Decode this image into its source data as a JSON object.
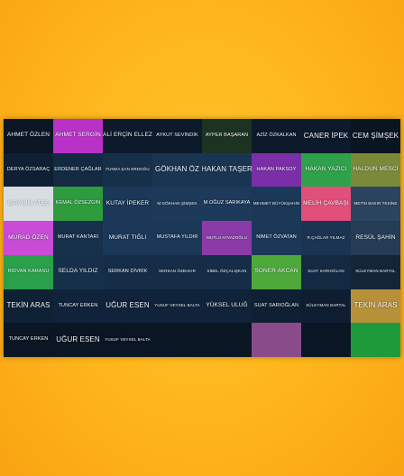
{
  "grid": {
    "columns": 8,
    "rows": [
      [
        {
          "text": "AHMET ÖZLEN",
          "bg": "#0b1726",
          "size": "m"
        },
        {
          "text": "AHMET SERGİN",
          "bg": "#b832c7",
          "size": "m"
        },
        {
          "text": "ALİ ERÇİN ELLEZ",
          "bg": "#0d1a2b",
          "size": "m"
        },
        {
          "text": "AYKUT SEVİNDİK",
          "bg": "#0d1a2b",
          "size": "s"
        },
        {
          "text": "AYPER BAŞARAN",
          "bg": "#1d3322",
          "size": "s"
        },
        {
          "text": "AZİZ ÖZKALKAN",
          "bg": "#0d1a2b",
          "size": "s"
        },
        {
          "text": "CANER İPEK",
          "bg": "#0d1a2b",
          "size": "l"
        },
        {
          "text": "CEM ŞİMŞEK",
          "bg": "#0a1522",
          "size": "l"
        }
      ],
      [
        {
          "text": "DERYA ÖZSARAÇ",
          "bg": "#0f2034",
          "size": "s"
        },
        {
          "text": "ERDENER ÇAĞLAR",
          "bg": "#132a42",
          "size": "s"
        },
        {
          "text": "FUNDA ŞAN ERDOĞU",
          "bg": "#17304a",
          "size": "xs"
        },
        {
          "text": "GÖKHAN ÖZ",
          "bg": "#1a3552",
          "size": "l"
        },
        {
          "text": "HAKAN TAŞER",
          "bg": "#1a3552",
          "size": "l"
        },
        {
          "text": "HAKAN PAKSOY",
          "bg": "#7a2fa8",
          "size": "s"
        },
        {
          "text": "HAKAN YAZICI",
          "bg": "#2fa14a",
          "size": "m"
        },
        {
          "text": "HALDUN MESCİ",
          "bg": "#7a8a3a",
          "size": "m"
        }
      ],
      [
        {
          "text": "İBRAHİM ATEŞ",
          "bg": "#d8dde2",
          "size": "m"
        },
        {
          "text": "KEMAL ÖZSEZGİN",
          "bg": "#2f9b3f",
          "size": "s"
        },
        {
          "text": "KUTAY İPEKER",
          "bg": "#1b3858",
          "size": "m"
        },
        {
          "text": "M.GÖKHAN ŞİMŞEK",
          "bg": "#1d3a5a",
          "size": "xs"
        },
        {
          "text": "M.OĞUZ SARIKAYA",
          "bg": "#1d3a5a",
          "size": "s"
        },
        {
          "text": "MEHMET BÜYÜKŞAHİN",
          "bg": "#1b3858",
          "size": "xs"
        },
        {
          "text": "MELİH ÇAVBAŞI",
          "bg": "#e0507a",
          "size": "m"
        },
        {
          "text": "METİN BAKIR TEKİNE",
          "bg": "#2b4560",
          "size": "xs"
        }
      ],
      [
        {
          "text": "MURAD ÖZEN",
          "bg": "#c94bd6",
          "size": "m"
        },
        {
          "text": "MURAT KANTARİ",
          "bg": "#17304c",
          "size": "s"
        },
        {
          "text": "MURAT TIĞLI",
          "bg": "#1b3858",
          "size": "m"
        },
        {
          "text": "MUSTAFA YILDIR",
          "bg": "#1b3858",
          "size": "s"
        },
        {
          "text": "MUTLU AYVAZOĞLU",
          "bg": "#8a3ba8",
          "size": "xs"
        },
        {
          "text": "NİMET ÖZVATAN",
          "bg": "#1b3858",
          "size": "s"
        },
        {
          "text": "R.ÇAĞLAR YILMAZ",
          "bg": "#1a3452",
          "size": "xs"
        },
        {
          "text": "RESÜL ŞAHİN",
          "bg": "#243c56",
          "size": "m"
        }
      ],
      [
        {
          "text": "RIDVAN KARASU",
          "bg": "#2aa04a",
          "size": "s"
        },
        {
          "text": "SELDA YILDIZ",
          "bg": "#16304b",
          "size": "m"
        },
        {
          "text": "SERKAN DİVRİK",
          "bg": "#152d47",
          "size": "s"
        },
        {
          "text": "SERKAN ÖZBAKIR",
          "bg": "#152d47",
          "size": "xs"
        },
        {
          "text": "SİBEL ÖZÇALIŞKAN",
          "bg": "#152d47",
          "size": "xs"
        },
        {
          "text": "SONER AKCAN",
          "bg": "#4ea83a",
          "size": "m"
        },
        {
          "text": "SUAT SARIOĞLAN",
          "bg": "#132a42",
          "size": "xs"
        },
        {
          "text": "SÜLEYMAN BARTAL",
          "bg": "#122638",
          "size": "xs"
        }
      ],
      [
        {
          "text": "TEKİN ARAS",
          "bg": "#0f2134",
          "size": "l"
        },
        {
          "text": "TUNCAY ERKEN",
          "bg": "#10233a",
          "size": "s"
        },
        {
          "text": "UĞUR ESEN",
          "bg": "#10233a",
          "size": "l"
        },
        {
          "text": "YUSUF VEYSEL BALTA",
          "bg": "#10233a",
          "size": "xs"
        },
        {
          "text": "YÜKSEL ULUĞ",
          "bg": "#10233a",
          "size": "m"
        },
        {
          "text": "SUAT SARIOĞLAN",
          "bg": "#0f2034",
          "size": "s"
        },
        {
          "text": "SÜLEYMAN BARTAL",
          "bg": "#0e1d30",
          "size": "xs"
        },
        {
          "text": "TEKİN ARAS",
          "bg": "#b8903a",
          "size": "l"
        }
      ],
      [
        {
          "text": "TUNCAY ERKEN",
          "bg": "#0a1624",
          "size": "s"
        },
        {
          "text": "UĞUR ESEN",
          "bg": "#0a1624",
          "size": "l"
        },
        {
          "text": "YUSUF VEYSEL BALTA",
          "bg": "#0a1624",
          "size": "xs"
        },
        {
          "text": "",
          "bg": "#0a1624",
          "size": "s"
        },
        {
          "text": "",
          "bg": "#0a1624",
          "size": "s"
        },
        {
          "text": "",
          "bg": "#8a4b8a",
          "size": "s"
        },
        {
          "text": "",
          "bg": "#0a1624",
          "size": "s"
        },
        {
          "text": "",
          "bg": "#1f9a3a",
          "size": "s"
        }
      ]
    ]
  }
}
